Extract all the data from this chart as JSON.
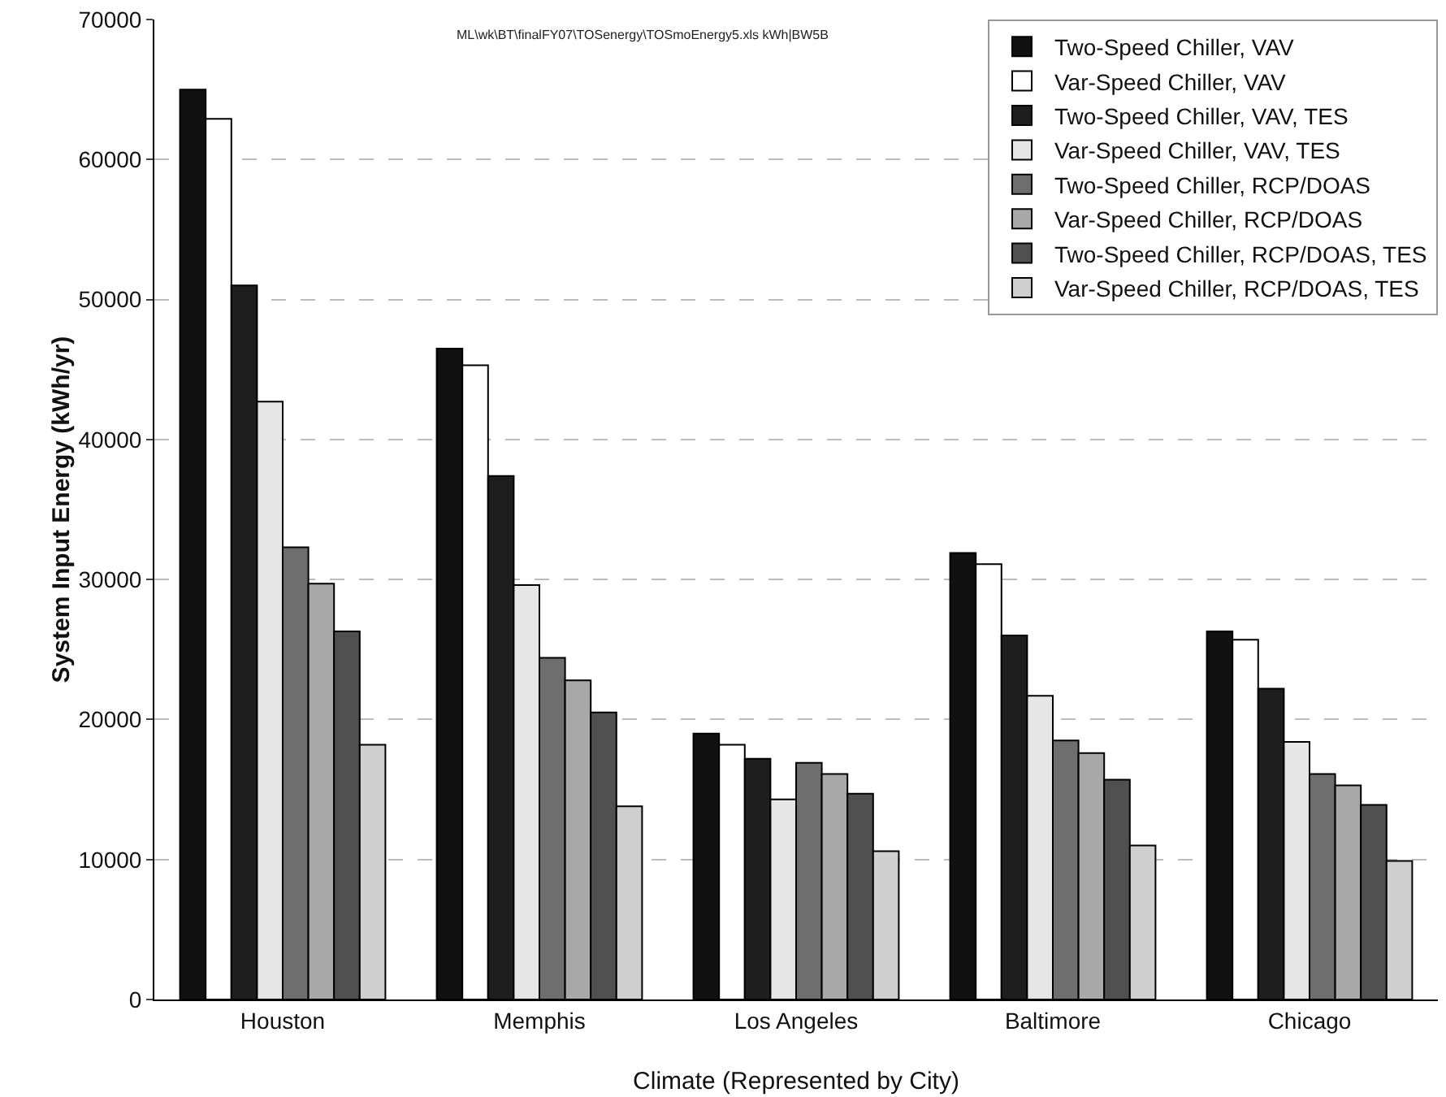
{
  "chart_data": {
    "type": "bar",
    "xlabel": "Climate (Represented by City)",
    "ylabel": "System Input Energy (kWh/yr)",
    "annotations": [
      "ML\\wk\\BT\\finalFY07\\TOSenergy\\TOSmoEnergy5.xls kWh|BW5B"
    ],
    "categories": [
      "Houston",
      "Memphis",
      "Los Angeles",
      "Baltimore",
      "Chicago"
    ],
    "series": [
      {
        "name": "Two-Speed Chiller, VAV",
        "color": "#111111",
        "values": [
          65000,
          46500,
          19000,
          31900,
          26300
        ]
      },
      {
        "name": "Var-Speed Chiller, VAV",
        "color": "#ffffff",
        "values": [
          62900,
          45300,
          18200,
          31100,
          25700
        ]
      },
      {
        "name": "Two-Speed Chiller, VAV, TES",
        "color": "#1e1e1e",
        "values": [
          51000,
          37400,
          17200,
          26000,
          22200
        ]
      },
      {
        "name": "Var-Speed Chiller, VAV, TES",
        "color": "#e6e6e6",
        "values": [
          42700,
          29600,
          14300,
          21700,
          18400
        ]
      },
      {
        "name": "Two-Speed Chiller, RCP/DOAS",
        "color": "#6e6e6e",
        "values": [
          32300,
          24400,
          16900,
          18500,
          16100
        ]
      },
      {
        "name": "Var-Speed Chiller, RCP/DOAS",
        "color": "#a8a8a8",
        "values": [
          29700,
          22800,
          16100,
          17600,
          15300
        ]
      },
      {
        "name": "Two-Speed Chiller, RCP/DOAS, TES",
        "color": "#505050",
        "values": [
          26300,
          20500,
          14700,
          15700,
          13900
        ]
      },
      {
        "name": "Var-Speed Chiller, RCP/DOAS, TES",
        "color": "#cfcfcf",
        "values": [
          18200,
          13800,
          10600,
          11000,
          9900
        ]
      }
    ],
    "ylim": [
      0,
      70000
    ],
    "yticks": [
      0,
      10000,
      20000,
      30000,
      40000,
      50000,
      60000,
      70000
    ],
    "grid": "y",
    "legend": "top right"
  }
}
